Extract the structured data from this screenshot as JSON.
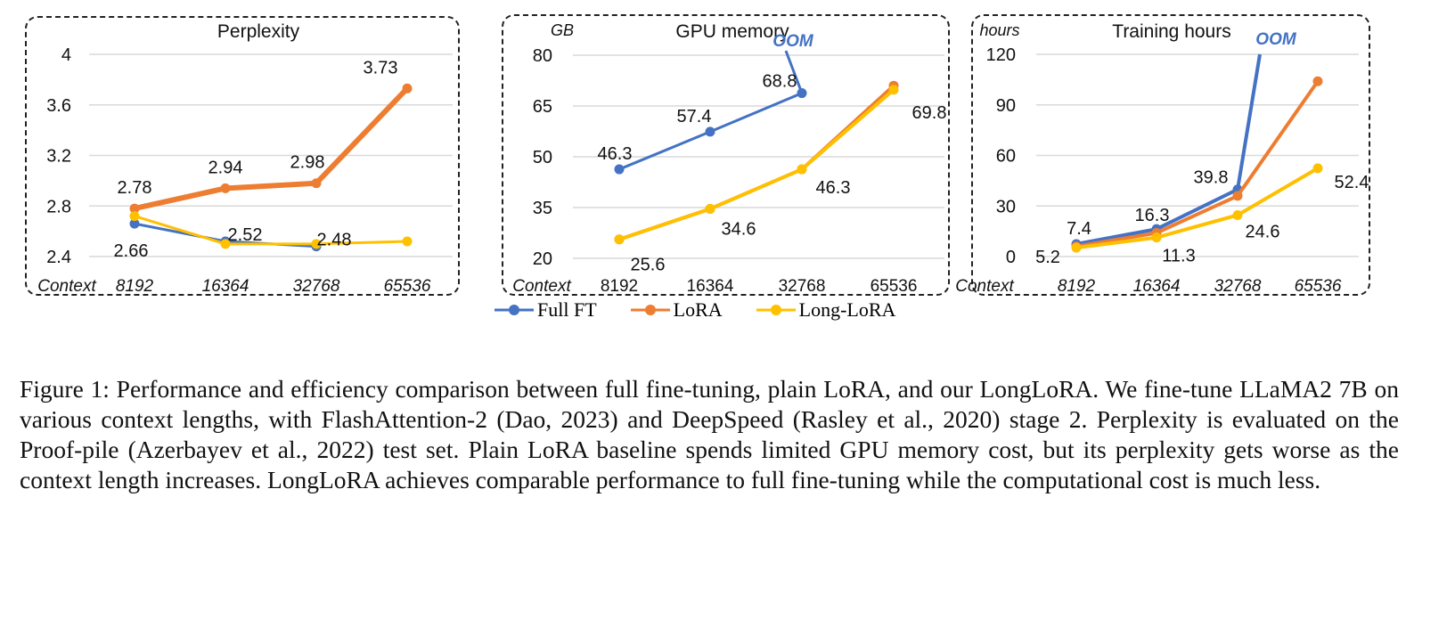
{
  "chart_data": [
    {
      "type": "line",
      "title": "Perplexity",
      "ylabel": "",
      "xlabel": "Context",
      "categories": [
        "8192",
        "16364",
        "32768",
        "65536"
      ],
      "ylim": [
        2.4,
        4
      ],
      "yticks": [
        "2.4",
        "2.8",
        "3.2",
        "3.6",
        "4"
      ],
      "grid": true,
      "series": [
        {
          "name": "Full FT",
          "values": [
            2.66,
            2.52,
            2.48,
            null
          ]
        },
        {
          "name": "LoRA",
          "values": [
            2.78,
            2.94,
            2.98,
            3.73
          ]
        },
        {
          "name": "Long-LoRA",
          "values": [
            2.72,
            2.5,
            2.5,
            2.52
          ]
        }
      ],
      "data_labels": [
        {
          "text": "2.66",
          "series": 0,
          "i": 0
        },
        {
          "text": "2.52",
          "series": 0,
          "i": 1
        },
        {
          "text": "2.48",
          "series": 0,
          "i": 2
        },
        {
          "text": "2.78",
          "series": 1,
          "i": 0
        },
        {
          "text": "2.94",
          "series": 1,
          "i": 1
        },
        {
          "text": "2.98",
          "series": 1,
          "i": 2
        },
        {
          "text": "3.73",
          "series": 1,
          "i": 3
        }
      ]
    },
    {
      "type": "line",
      "title": "GPU memory",
      "ylabel": "GB",
      "xlabel": "Context",
      "categories": [
        "8192",
        "16364",
        "32768",
        "65536"
      ],
      "ylim": [
        20,
        80
      ],
      "yticks": [
        "20",
        "35",
        "50",
        "65",
        "80"
      ],
      "grid": true,
      "annotation": "OOM",
      "series": [
        {
          "name": "Full FT",
          "values": [
            46.3,
            57.4,
            68.8,
            null
          ]
        },
        {
          "name": "LoRA",
          "values": [
            25.6,
            34.6,
            46.3,
            71
          ]
        },
        {
          "name": "Long-LoRA",
          "values": [
            25.6,
            34.6,
            46.3,
            69.8
          ]
        }
      ],
      "data_labels": [
        {
          "text": "46.3",
          "series": 0,
          "i": 0
        },
        {
          "text": "57.4",
          "series": 0,
          "i": 1
        },
        {
          "text": "68.8",
          "series": 0,
          "i": 2
        },
        {
          "text": "25.6",
          "series": 2,
          "i": 0
        },
        {
          "text": "34.6",
          "series": 2,
          "i": 1
        },
        {
          "text": "46.3",
          "series": 2,
          "i": 2
        },
        {
          "text": "69.8",
          "series": 2,
          "i": 3
        }
      ]
    },
    {
      "type": "line",
      "title": "Training hours",
      "ylabel": "hours",
      "xlabel": "Context",
      "categories": [
        "8192",
        "16364",
        "32768",
        "65536"
      ],
      "ylim": [
        0,
        120
      ],
      "yticks": [
        "0",
        "30",
        "60",
        "90",
        "120"
      ],
      "grid": true,
      "annotation": "OOM",
      "series": [
        {
          "name": "Full FT",
          "values": [
            7.4,
            16.3,
            39.8,
            null
          ]
        },
        {
          "name": "LoRA",
          "values": [
            6,
            14,
            36,
            104
          ]
        },
        {
          "name": "Long-LoRA",
          "values": [
            5.2,
            11.3,
            24.6,
            52.4
          ]
        }
      ],
      "data_labels": [
        {
          "text": "7.4",
          "series": 0,
          "i": 0
        },
        {
          "text": "16.3",
          "series": 0,
          "i": 1
        },
        {
          "text": "39.8",
          "series": 0,
          "i": 2
        },
        {
          "text": "5.2",
          "series": 2,
          "i": 0
        },
        {
          "text": "11.3",
          "series": 2,
          "i": 1
        },
        {
          "text": "24.6",
          "series": 2,
          "i": 2
        },
        {
          "text": "52.4",
          "series": 2,
          "i": 3
        }
      ]
    }
  ],
  "legend": [
    {
      "label": "Full FT",
      "color": "#4472C4"
    },
    {
      "label": "LoRA",
      "color": "#ED7D31"
    },
    {
      "label": "Long-LoRA",
      "color": "#FFC000"
    }
  ],
  "caption": "Figure 1: Performance and efficiency comparison between full fine-tuning, plain LoRA, and our LongLoRA. We fine-tune LLaMA2 7B on various context lengths, with FlashAttention-2 (Dao, 2023) and DeepSpeed (Rasley et al., 2020) stage 2. Perplexity is evaluated on the Proof-pile (Azerbayev et al., 2022) test set. Plain LoRA baseline spends limited GPU memory cost, but its perplexity gets worse as the context length increases. LongLoRA achieves comparable performance to full fine-tuning while the computational cost is much less."
}
